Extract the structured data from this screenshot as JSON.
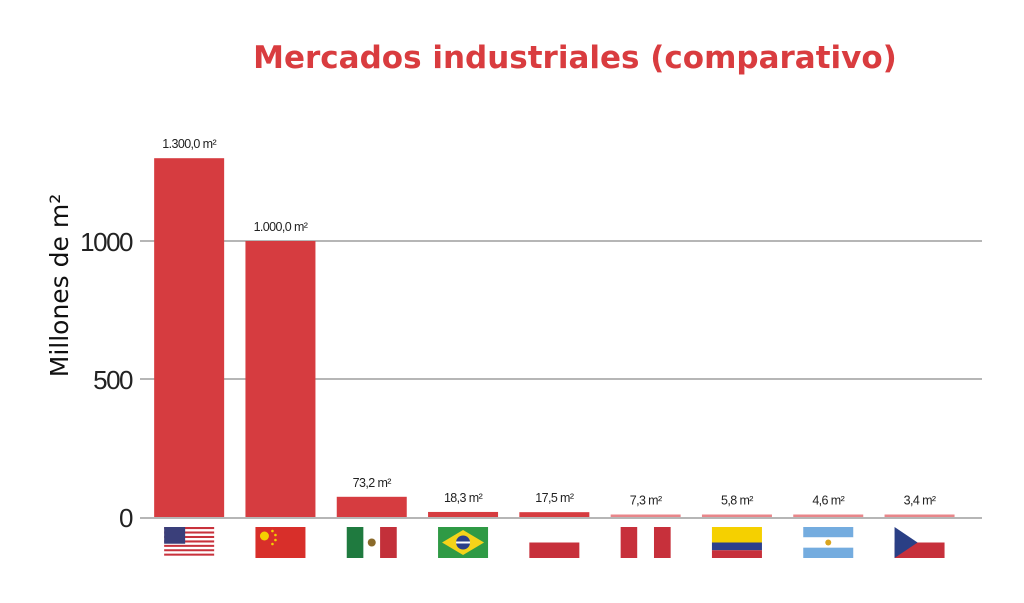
{
  "chart_data": {
    "type": "bar",
    "title": "Mercados industriales (comparativo)",
    "xlabel": "",
    "ylabel": "Millones de m²",
    "ylim": [
      0,
      1300
    ],
    "yticks": [
      0,
      500,
      1000
    ],
    "grid": true,
    "categories": [
      "Estados Unidos",
      "China",
      "México",
      "Brasil",
      "Polonia",
      "Perú",
      "Colombia",
      "Argentina",
      "República Checa"
    ],
    "values": [
      1300.0,
      1000.0,
      73.2,
      18.3,
      17.5,
      7.3,
      5.8,
      4.6,
      3.4
    ],
    "value_labels": [
      "1.300,0 m²",
      "1.000,0 m²",
      "73,2 m²",
      "18,3 m²",
      "17,5 m²",
      "7,3 m²",
      "5,8 m²",
      "4,6 m²",
      "3,4 m²"
    ],
    "category_icons": [
      "usa-flag-icon",
      "china-flag-icon",
      "mexico-flag-icon",
      "brazil-flag-icon",
      "poland-flag-icon",
      "peru-flag-icon",
      "colombia-flag-icon",
      "argentina-flag-icon",
      "czech-flag-icon"
    ]
  },
  "colors": {
    "title": "#d93c3f",
    "bar": "#d63c40",
    "bar_light": "#e8868a",
    "grid": "#8a8a8a",
    "axis_text": "#222222"
  }
}
